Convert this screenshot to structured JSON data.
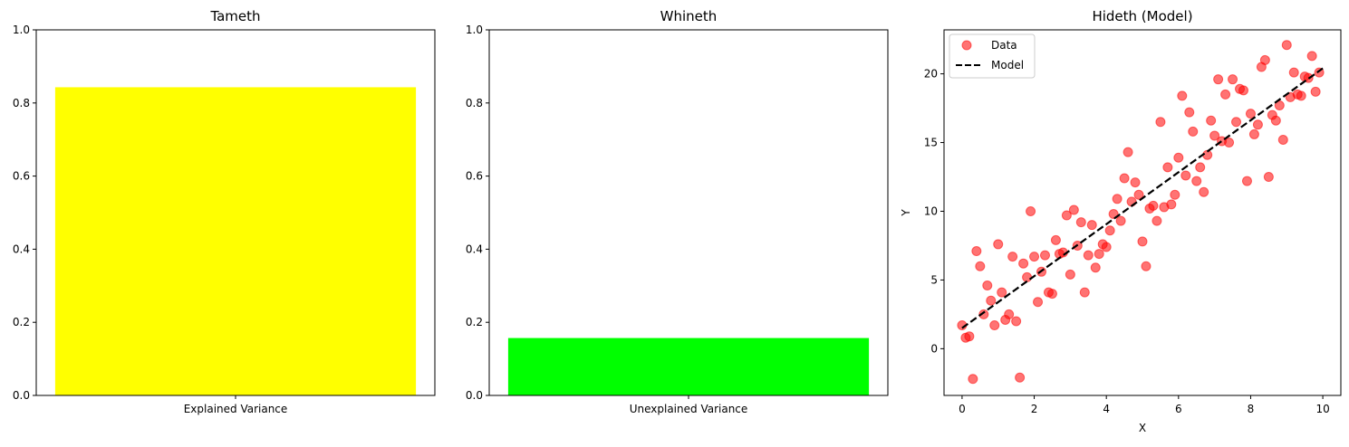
{
  "chart_data": [
    {
      "type": "bar",
      "title": "Tameth",
      "categories": [
        "Explained Variance"
      ],
      "values": [
        0.843
      ],
      "color": "#ffff00",
      "ylim": [
        0,
        1
      ],
      "yticks": [
        "0.0",
        "0.2",
        "0.4",
        "0.6",
        "0.8",
        "1.0"
      ],
      "xlabel": "",
      "ylabel": ""
    },
    {
      "type": "bar",
      "title": "Whineth",
      "categories": [
        "Unexplained Variance"
      ],
      "values": [
        0.157
      ],
      "color": "#00ff00",
      "ylim": [
        0,
        1
      ],
      "yticks": [
        "0.0",
        "0.2",
        "0.4",
        "0.6",
        "0.8",
        "1.0"
      ],
      "xlabel": "",
      "ylabel": ""
    },
    {
      "type": "scatter",
      "title": "Hideth (Model)",
      "xlabel": "X",
      "ylabel": "Y",
      "xlim": [
        -0.5,
        10.5
      ],
      "ylim": [
        -3.4,
        23.2
      ],
      "xticks": [
        "0",
        "2",
        "4",
        "6",
        "8",
        "10"
      ],
      "yticks": [
        "0",
        "5",
        "10",
        "15",
        "20"
      ],
      "legend": {
        "position": "top-left",
        "entries": [
          "Data",
          "Model"
        ]
      },
      "series": [
        {
          "name": "Data",
          "color": "#ff0000",
          "alpha": 0.55,
          "points": [
            [
              0.0,
              1.7
            ],
            [
              0.1,
              0.8
            ],
            [
              0.2,
              0.9
            ],
            [
              0.3,
              -2.2
            ],
            [
              0.4,
              7.1
            ],
            [
              0.5,
              6.0
            ],
            [
              0.6,
              2.5
            ],
            [
              0.7,
              4.6
            ],
            [
              0.8,
              3.5
            ],
            [
              0.9,
              1.7
            ],
            [
              1.0,
              7.6
            ],
            [
              1.1,
              4.1
            ],
            [
              1.2,
              2.1
            ],
            [
              1.3,
              2.5
            ],
            [
              1.4,
              6.7
            ],
            [
              1.5,
              2.0
            ],
            [
              1.6,
              -2.1
            ],
            [
              1.7,
              6.2
            ],
            [
              1.8,
              5.2
            ],
            [
              1.9,
              10.0
            ],
            [
              2.0,
              6.7
            ],
            [
              2.1,
              3.4
            ],
            [
              2.2,
              5.6
            ],
            [
              2.3,
              6.8
            ],
            [
              2.4,
              4.1
            ],
            [
              2.5,
              4.0
            ],
            [
              2.6,
              7.9
            ],
            [
              2.7,
              6.9
            ],
            [
              2.8,
              7.0
            ],
            [
              2.9,
              9.7
            ],
            [
              3.0,
              5.4
            ],
            [
              3.1,
              10.1
            ],
            [
              3.2,
              7.5
            ],
            [
              3.3,
              9.2
            ],
            [
              3.4,
              4.1
            ],
            [
              3.5,
              6.8
            ],
            [
              3.6,
              9.0
            ],
            [
              3.7,
              5.9
            ],
            [
              3.8,
              6.9
            ],
            [
              3.9,
              7.6
            ],
            [
              4.0,
              7.4
            ],
            [
              4.1,
              8.6
            ],
            [
              4.2,
              9.8
            ],
            [
              4.3,
              10.9
            ],
            [
              4.4,
              9.3
            ],
            [
              4.5,
              12.4
            ],
            [
              4.6,
              14.3
            ],
            [
              4.7,
              10.7
            ],
            [
              4.8,
              12.1
            ],
            [
              4.9,
              11.2
            ],
            [
              5.0,
              7.8
            ],
            [
              5.1,
              6.0
            ],
            [
              5.2,
              10.2
            ],
            [
              5.3,
              10.4
            ],
            [
              5.4,
              9.3
            ],
            [
              5.5,
              16.5
            ],
            [
              5.6,
              10.3
            ],
            [
              5.7,
              13.2
            ],
            [
              5.8,
              10.5
            ],
            [
              5.9,
              11.2
            ],
            [
              6.0,
              13.9
            ],
            [
              6.1,
              18.4
            ],
            [
              6.2,
              12.6
            ],
            [
              6.3,
              17.2
            ],
            [
              6.4,
              15.8
            ],
            [
              6.5,
              12.2
            ],
            [
              6.6,
              13.2
            ],
            [
              6.7,
              11.4
            ],
            [
              6.8,
              14.1
            ],
            [
              6.9,
              16.6
            ],
            [
              7.0,
              15.5
            ],
            [
              7.1,
              19.6
            ],
            [
              7.2,
              15.1
            ],
            [
              7.3,
              18.5
            ],
            [
              7.4,
              15.0
            ],
            [
              7.5,
              19.6
            ],
            [
              7.6,
              16.5
            ],
            [
              7.7,
              18.9
            ],
            [
              7.8,
              18.8
            ],
            [
              7.9,
              12.2
            ],
            [
              8.0,
              17.1
            ],
            [
              8.1,
              15.6
            ],
            [
              8.2,
              16.3
            ],
            [
              8.3,
              20.5
            ],
            [
              8.4,
              21.0
            ],
            [
              8.5,
              12.5
            ],
            [
              8.6,
              17.0
            ],
            [
              8.7,
              16.6
            ],
            [
              8.8,
              17.7
            ],
            [
              8.9,
              15.2
            ],
            [
              9.0,
              22.1
            ],
            [
              9.1,
              18.3
            ],
            [
              9.2,
              20.1
            ],
            [
              9.3,
              18.5
            ],
            [
              9.4,
              18.4
            ],
            [
              9.5,
              19.8
            ],
            [
              9.6,
              19.7
            ],
            [
              9.7,
              21.3
            ],
            [
              9.8,
              18.7
            ],
            [
              9.9,
              20.1
            ]
          ]
        },
        {
          "name": "Model",
          "type": "line",
          "style": "dashed",
          "color": "#000000",
          "x": [
            0,
            10
          ],
          "y": [
            1.5,
            20.4
          ]
        }
      ]
    }
  ]
}
